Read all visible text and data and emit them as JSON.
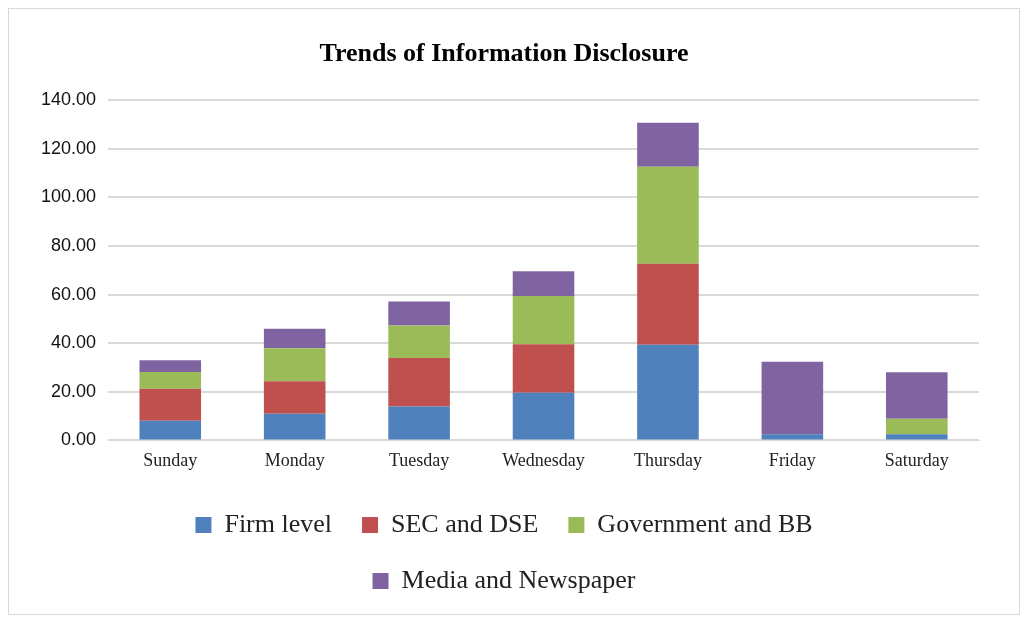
{
  "chart_data": {
    "type": "bar",
    "title": "Trends of Information Disclosure",
    "categories": [
      "Sunday",
      "Monday",
      "Tuesday",
      "Wednesday",
      "Thursday",
      "Friday",
      "Saturday"
    ],
    "stacked": true,
    "series": [
      {
        "name": "Firm level",
        "color": "#4f81bd",
        "values": [
          8.1,
          11.0,
          13.9,
          19.6,
          39.4,
          2.5,
          2.5
        ]
      },
      {
        "name": "SEC and DSE",
        "color": "#c0504d",
        "values": [
          13.2,
          13.3,
          20.0,
          20.0,
          33.3,
          0,
          0
        ]
      },
      {
        "name": "Government and BB",
        "color": "#9bbb59",
        "values": [
          6.8,
          13.6,
          13.4,
          19.8,
          39.9,
          0,
          6.4
        ]
      },
      {
        "name": "Media and Newspaper",
        "color": "#8064a2",
        "values": [
          4.9,
          8.0,
          9.9,
          10.2,
          18.1,
          29.9,
          19.1
        ]
      }
    ],
    "ylim": [
      0,
      140
    ],
    "yticks": [
      {
        "value": 0,
        "label": "0.00"
      },
      {
        "value": 20,
        "label": "20.00"
      },
      {
        "value": 40,
        "label": "40.00"
      },
      {
        "value": 60,
        "label": "60.00"
      },
      {
        "value": 80,
        "label": "80.00"
      },
      {
        "value": 100,
        "label": "100.00"
      },
      {
        "value": 120,
        "label": "120.00"
      },
      {
        "value": 140,
        "label": "140.00"
      }
    ],
    "grid": "y",
    "legend": "bottom"
  }
}
